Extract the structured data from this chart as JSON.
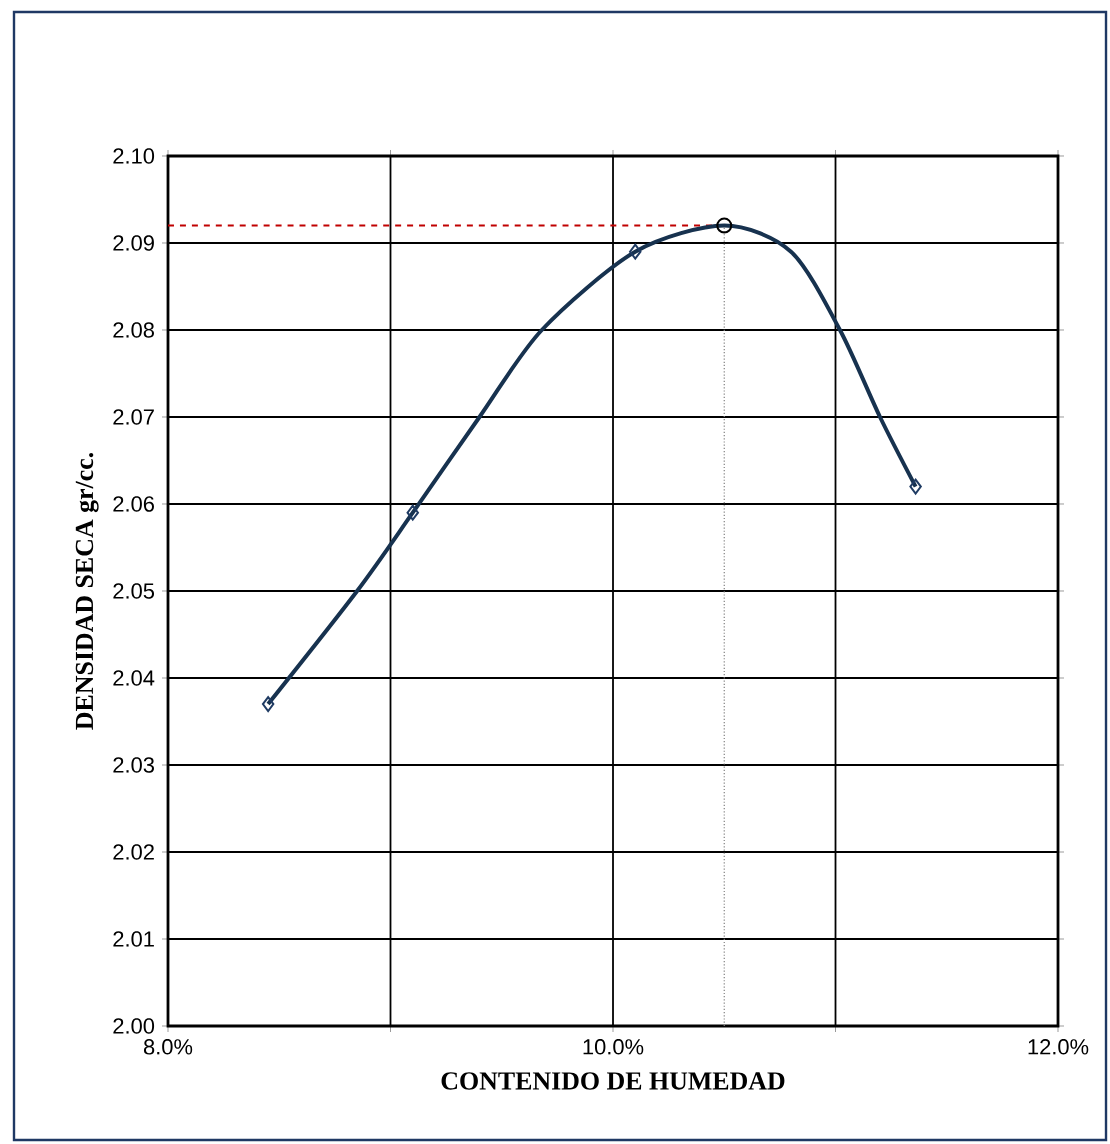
{
  "chart_data": {
    "type": "scatter",
    "xlabel": "CONTENIDO DE HUMEDAD",
    "ylabel": "DENSIDAD SECA gr/cc.",
    "xlim": [
      8,
      12
    ],
    "ylim": [
      2.0,
      2.1
    ],
    "xticks": [
      {
        "value": 8,
        "label": "8.0%"
      },
      {
        "value": 9,
        "label": null
      },
      {
        "value": 10,
        "label": "10.0%"
      },
      {
        "value": 11,
        "label": null
      },
      {
        "value": 12,
        "label": "12.0%"
      }
    ],
    "yticks": [
      {
        "value": 2.0,
        "label": "2.00"
      },
      {
        "value": 2.01,
        "label": "2.01"
      },
      {
        "value": 2.02,
        "label": "2.02"
      },
      {
        "value": 2.03,
        "label": "2.03"
      },
      {
        "value": 2.04,
        "label": "2.04"
      },
      {
        "value": 2.05,
        "label": "2.05"
      },
      {
        "value": 2.06,
        "label": "2.06"
      },
      {
        "value": 2.07,
        "label": "2.07"
      },
      {
        "value": 2.08,
        "label": "2.08"
      },
      {
        "value": 2.09,
        "label": "2.09"
      },
      {
        "value": 2.1,
        "label": "2.10"
      }
    ],
    "grid": true,
    "series": [
      {
        "type": "line",
        "color": "#17324f",
        "marker": "none",
        "x": [
          8.45,
          8.85,
          9.1,
          9.4,
          9.68,
          10.1,
          10.5,
          10.8,
          11.02,
          11.2,
          11.36
        ],
        "values": [
          2.037,
          2.05,
          2.059,
          2.07,
          2.08,
          2.089,
          2.092,
          2.089,
          2.08,
          2.07,
          2.062
        ]
      },
      {
        "color": "#1f3b63",
        "marker": "diamond",
        "x": [
          8.45,
          9.1,
          10.1,
          11.36
        ],
        "values": [
          2.037,
          2.059,
          2.089,
          2.062
        ]
      },
      {
        "color": "#000000",
        "marker": "circle",
        "x": [
          10.5
        ],
        "values": [
          2.092
        ]
      }
    ],
    "ref_lines": [
      {
        "axis": "y",
        "value": 2.092,
        "color": "#c00000",
        "line_style": "dashed"
      },
      {
        "axis": "x",
        "value": 10.5,
        "color": "#808080",
        "line_style": "dotted"
      }
    ]
  }
}
